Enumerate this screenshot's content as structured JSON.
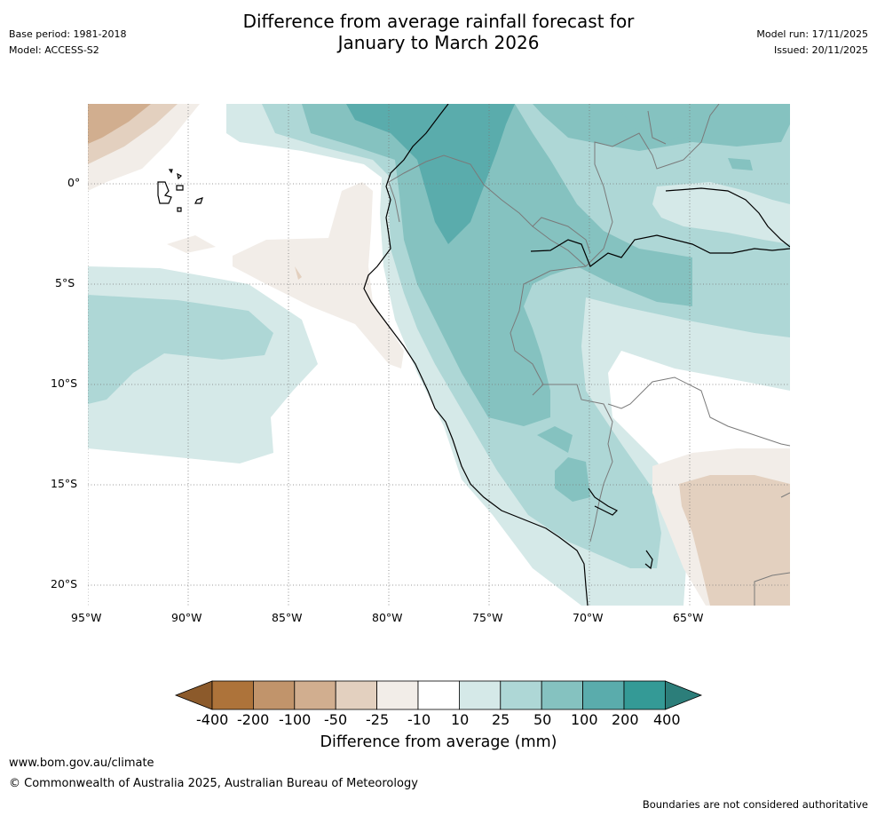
{
  "header": {
    "title_line1": "Difference from average rainfall forecast for",
    "title_line2": "January to March 2026",
    "base_period": "Base period: 1981-2018",
    "model": "Model: ACCESS-S2",
    "model_run": "Model run: 17/11/2025",
    "issued": "Issued: 20/11/2025"
  },
  "map": {
    "lat_labels": [
      "0°",
      "5°S",
      "10°S",
      "15°S",
      "20°S"
    ],
    "lon_labels": [
      "95°W",
      "90°W",
      "85°W",
      "80°W",
      "75°W",
      "70°W",
      "65°W"
    ],
    "colors": {
      "c_neg400": "#8c5a2b",
      "c_neg200": "#ad733a",
      "c_neg100": "#c1946b",
      "c_neg50": "#d1ae8f",
      "c_neg25": "#e3d0bf",
      "c_neg10": "#f2ede8",
      "c_zero": "#ffffff",
      "c_10": "#d5e9e8",
      "c_25": "#aed7d6",
      "c_50": "#85c2c0",
      "c_100": "#5aacac",
      "c_200": "#349a96",
      "c_400": "#2c7e7a"
    }
  },
  "colorbar": {
    "ticks": [
      "-400",
      "-200",
      "-100",
      "-50",
      "-25",
      "-10",
      "10",
      "25",
      "50",
      "100",
      "200",
      "400"
    ],
    "label": "Difference from average (mm)"
  },
  "footer": {
    "url": "www.bom.gov.au/climate",
    "copyright": "© Commonwealth of Australia 2025, Australian Bureau of Meteorology",
    "disclaimer": "Boundaries are not considered authoritative"
  }
}
